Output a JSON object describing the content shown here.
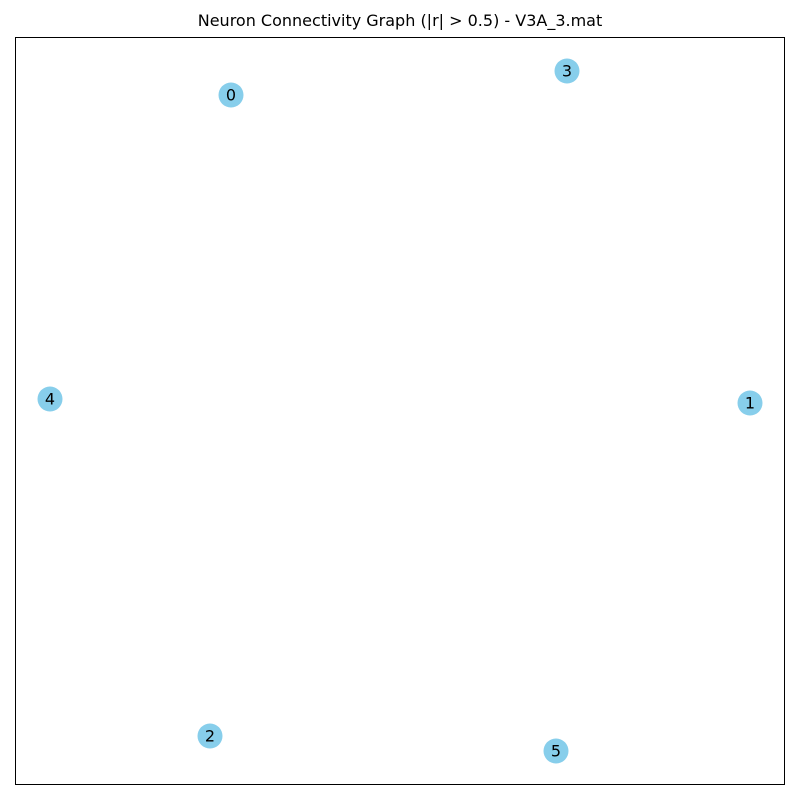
{
  "figure": {
    "title": "Neuron Connectivity Graph (|r| > 0.5) - V3A_3.mat"
  },
  "graph": {
    "edges": [],
    "nodes": [
      {
        "id": "0",
        "label": "0"
      },
      {
        "id": "1",
        "label": "1"
      },
      {
        "id": "2",
        "label": "2"
      },
      {
        "id": "3",
        "label": "3"
      },
      {
        "id": "4",
        "label": "4"
      },
      {
        "id": "5",
        "label": "5"
      }
    ]
  },
  "colors": {
    "node_fill": "#87ceeb",
    "label_text": "#000000",
    "frame": "#000000",
    "background": "#ffffff"
  }
}
